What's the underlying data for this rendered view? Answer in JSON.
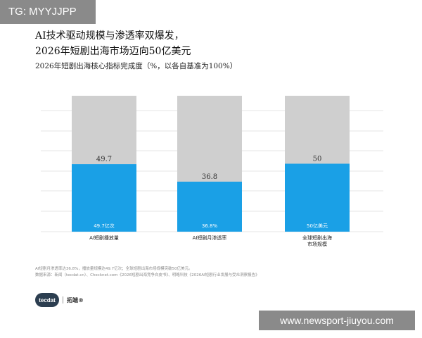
{
  "badge": {
    "text": "TG: MYYJJPP"
  },
  "title": {
    "line1": "AI技术驱动规模与渗透率双爆发，",
    "line2": "2026年短剧出海市场迈向50亿美元"
  },
  "subtitle": "2026年短剧出海核心指标完成度（%，以各自基准为100%）",
  "chart_data": {
    "type": "bar",
    "stacked_reference": true,
    "categories": [
      "AI短剧播放量",
      "AI短剧月渗透率",
      "全球短剧出海\n市场规模"
    ],
    "values": [
      49.7,
      36.8,
      50
    ],
    "reference_total": 100,
    "value_labels": [
      "49.7",
      "36.8",
      "50"
    ],
    "inner_labels": [
      "49.7亿次",
      "36.8%",
      "50亿美元"
    ],
    "ylim": [
      0,
      100
    ],
    "grid": true,
    "colors": {
      "value": "#1aa0e6",
      "remainder": "#cfcfcf",
      "grid": "#e6e6e6"
    }
  },
  "footnotes": {
    "line1": "AI短剧月渗透率达36.8%，播放量规模达49.7亿次；全球短剧出海市场规模突破50亿美元。",
    "line2": "数据来源：新闻（tecdat.cn）、Checknet.com《2026短剧出海竞争白皮书》、明略科技《2026AI短剧行业发展与受众洞察报告》"
  },
  "brand": {
    "logo": "tecdat",
    "name": "拓端®"
  },
  "watermark": {
    "text": "www.newsport-jiuyou.com"
  }
}
